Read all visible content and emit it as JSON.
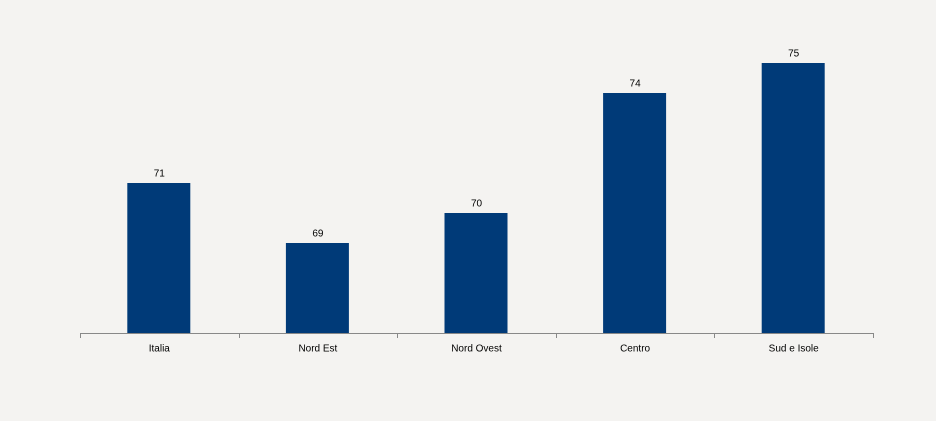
{
  "chart_data": {
    "type": "bar",
    "categories": [
      "Italia",
      "Nord Est",
      "Nord Ovest",
      "Centro",
      "Sud e Isole"
    ],
    "values": [
      71,
      69,
      70,
      74,
      75
    ],
    "color": "#003a78",
    "ylim": [
      66,
      76
    ]
  }
}
